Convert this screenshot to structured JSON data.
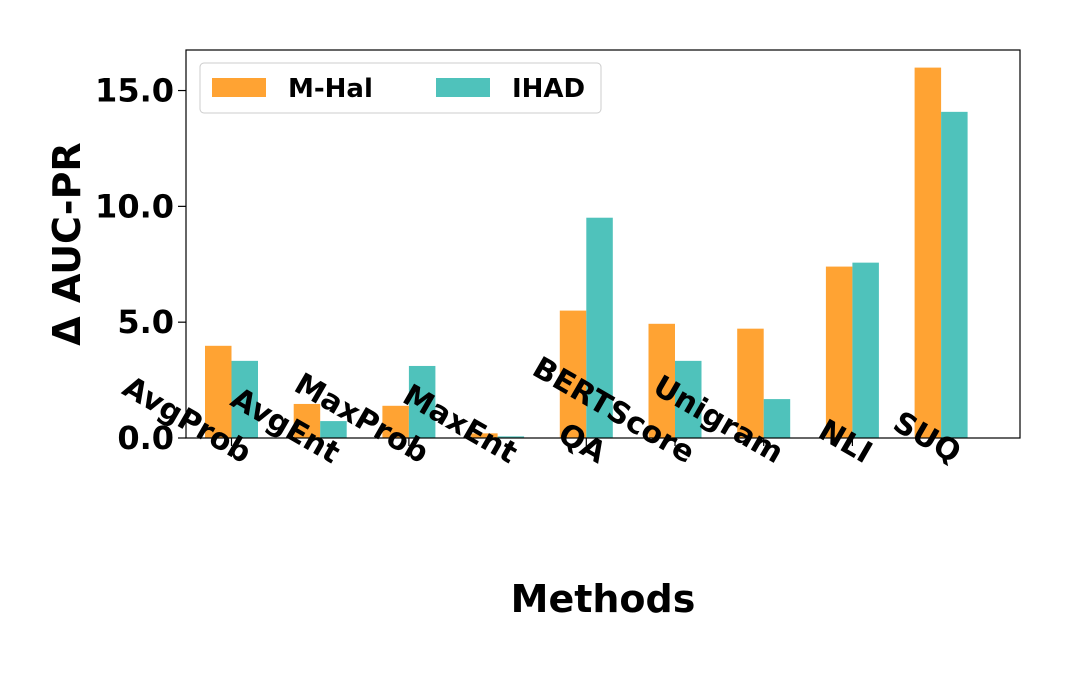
{
  "chart_data": {
    "type": "bar",
    "categories": [
      "AvgProb",
      "AvgEnt",
      "MaxProb",
      "MaxEnt",
      "QA",
      "BERTScore",
      "Unigram",
      "NLI",
      "SUQ"
    ],
    "series": [
      {
        "name": "M-Hal",
        "color": "#FFA333",
        "values": [
          3.98,
          1.47,
          1.39,
          0.2,
          5.5,
          4.93,
          4.72,
          7.4,
          15.99
        ]
      },
      {
        "name": "IHAD",
        "color": "#4FC2BB",
        "values": [
          3.33,
          0.73,
          3.11,
          0.07,
          9.51,
          3.33,
          1.68,
          7.57,
          14.08
        ]
      }
    ],
    "xlabel": "Methods",
    "ylabel": "Δ AUC-PR",
    "ylim": [
      0,
      16.75
    ],
    "yticks": [
      "0.0",
      "5.0",
      "10.0",
      "15.0"
    ],
    "ytick_values": [
      0,
      5,
      10,
      15
    ],
    "grid": false,
    "legend_position": "top-left",
    "legend_columns": 2
  }
}
